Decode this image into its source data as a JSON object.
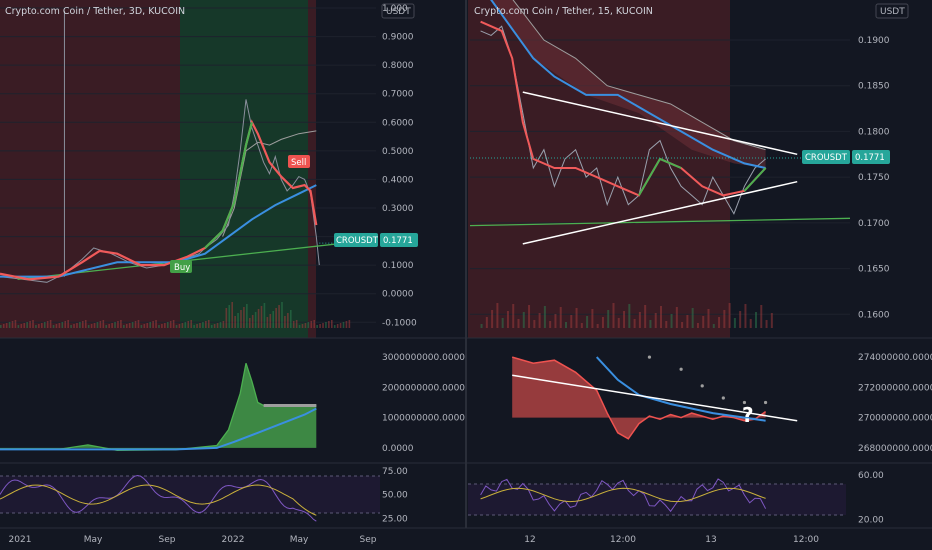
{
  "colors": {
    "background": "#131722",
    "red_zone": "#3a1c24",
    "green_zone": "#163829",
    "ema_red": "#f05a5a",
    "ma_blue": "#3a8fe0",
    "green_line": "#4caf50",
    "trend_white": "#ffffff",
    "price_badge": "#26a69a",
    "sell_badge": "#ef5350",
    "buy_badge": "#43a047",
    "rsi_line": "#7e57c2",
    "rsi_signal": "#c9b03b"
  },
  "chart_data": [
    {
      "panel": "left-main",
      "type": "line",
      "title": "Crypto.com Coin / Tether, 3D, KUCOIN",
      "currency_label": "USDT",
      "y_ticks": [
        "1.000",
        "0.9000",
        "0.8000",
        "0.7000",
        "0.6000",
        "0.5000",
        "0.4000",
        "0.3000",
        "0.2000",
        "0.1000",
        "0.0000",
        "-0.1000"
      ],
      "ylim": [
        -0.12,
        1.0
      ],
      "x_ticks": [
        "2021",
        "May",
        "Sep",
        "2022",
        "May",
        "Sep"
      ],
      "price_label": "CROUSDT",
      "price_value": "0.1771",
      "signals": [
        {
          "label": "Sell",
          "x": "2022 May",
          "y": 0.44
        },
        {
          "label": "Buy",
          "x": "2021 Oct",
          "y": 0.09
        }
      ],
      "series": [
        {
          "name": "price",
          "points": [
            [
              0,
              0.06
            ],
            [
              8,
              0.05
            ],
            [
              16,
              0.04
            ],
            [
              22,
              0.07
            ],
            [
              28,
              0.12
            ],
            [
              32,
              0.16
            ],
            [
              38,
              0.14
            ],
            [
              44,
              0.11
            ],
            [
              50,
              0.09
            ],
            [
              56,
              0.1
            ],
            [
              62,
              0.12
            ],
            [
              68,
              0.14
            ],
            [
              70,
              0.16
            ],
            [
              74,
              0.19
            ],
            [
              78,
              0.24
            ],
            [
              80,
              0.35
            ],
            [
              82,
              0.5
            ],
            [
              84,
              0.68
            ],
            [
              86,
              0.58
            ],
            [
              88,
              0.52
            ],
            [
              90,
              0.46
            ],
            [
              92,
              0.42
            ],
            [
              94,
              0.48
            ],
            [
              96,
              0.4
            ],
            [
              98,
              0.36
            ],
            [
              100,
              0.38
            ],
            [
              102,
              0.41
            ],
            [
              104,
              0.4
            ],
            [
              106,
              0.35
            ],
            [
              108,
              0.2
            ],
            [
              109,
              0.1
            ]
          ]
        },
        {
          "name": "ema",
          "points": [
            [
              0,
              0.07
            ],
            [
              10,
              0.05
            ],
            [
              20,
              0.06
            ],
            [
              28,
              0.11
            ],
            [
              34,
              0.15
            ],
            [
              40,
              0.14
            ],
            [
              48,
              0.1
            ],
            [
              56,
              0.1
            ],
            [
              64,
              0.13
            ],
            [
              70,
              0.16
            ],
            [
              76,
              0.22
            ],
            [
              80,
              0.32
            ],
            [
              84,
              0.52
            ],
            [
              86,
              0.6
            ],
            [
              88,
              0.56
            ],
            [
              92,
              0.46
            ],
            [
              96,
              0.41
            ],
            [
              100,
              0.37
            ],
            [
              104,
              0.38
            ],
            [
              106,
              0.36
            ],
            [
              108,
              0.24
            ]
          ]
        },
        {
          "name": "ma",
          "points": [
            [
              0,
              0.06
            ],
            [
              20,
              0.06
            ],
            [
              40,
              0.11
            ],
            [
              60,
              0.11
            ],
            [
              70,
              0.14
            ],
            [
              78,
              0.2
            ],
            [
              86,
              0.26
            ],
            [
              94,
              0.31
            ],
            [
              102,
              0.35
            ],
            [
              108,
              0.38
            ]
          ]
        },
        {
          "name": "ma2",
          "points": [
            [
              76,
              0.2
            ],
            [
              80,
              0.3
            ],
            [
              84,
              0.5
            ],
            [
              88,
              0.53
            ],
            [
              92,
              0.52
            ],
            [
              96,
              0.54
            ],
            [
              102,
              0.56
            ],
            [
              108,
              0.57
            ]
          ]
        },
        {
          "name": "support",
          "points": [
            [
              6,
              0.05
            ],
            [
              120,
              0.18
            ]
          ]
        }
      ]
    },
    {
      "panel": "right-main",
      "type": "line",
      "title": "Crypto.com Coin / Tether, 15, KUCOIN",
      "currency_label": "USDT",
      "y_ticks": [
        "0.1900",
        "0.1850",
        "0.1800",
        "0.1750",
        "0.1700",
        "0.1650",
        "0.1600"
      ],
      "ylim": [
        0.1585,
        0.1935
      ],
      "x_ticks": [
        "12",
        "12:00",
        "13",
        "12:00"
      ],
      "price_label": "CROUSDT",
      "price_value": "0.1771",
      "series": [
        {
          "name": "price",
          "points": [
            [
              0,
              0.191
            ],
            [
              2,
              0.1905
            ],
            [
              4,
              0.1915
            ],
            [
              6,
              0.188
            ],
            [
              8,
              0.182
            ],
            [
              10,
              0.176
            ],
            [
              12,
              0.178
            ],
            [
              14,
              0.174
            ],
            [
              16,
              0.177
            ],
            [
              18,
              0.178
            ],
            [
              20,
              0.175
            ],
            [
              22,
              0.176
            ],
            [
              24,
              0.172
            ],
            [
              26,
              0.175
            ],
            [
              28,
              0.172
            ],
            [
              30,
              0.173
            ],
            [
              32,
              0.178
            ],
            [
              34,
              0.179
            ],
            [
              36,
              0.176
            ],
            [
              38,
              0.174
            ],
            [
              40,
              0.173
            ],
            [
              42,
              0.172
            ],
            [
              44,
              0.175
            ],
            [
              46,
              0.173
            ],
            [
              48,
              0.171
            ],
            [
              50,
              0.174
            ],
            [
              52,
              0.176
            ],
            [
              54,
              0.177
            ]
          ]
        },
        {
          "name": "ema",
          "points": [
            [
              0,
              0.192
            ],
            [
              4,
              0.191
            ],
            [
              6,
              0.188
            ],
            [
              8,
              0.181
            ],
            [
              10,
              0.177
            ],
            [
              14,
              0.176
            ],
            [
              18,
              0.176
            ],
            [
              22,
              0.175
            ],
            [
              26,
              0.174
            ],
            [
              30,
              0.173
            ],
            [
              34,
              0.177
            ],
            [
              38,
              0.176
            ],
            [
              42,
              0.174
            ],
            [
              46,
              0.173
            ],
            [
              50,
              0.1735
            ],
            [
              54,
              0.176
            ]
          ]
        },
        {
          "name": "ma",
          "points": [
            [
              0,
              0.196
            ],
            [
              10,
              0.188
            ],
            [
              14,
              0.186
            ],
            [
              20,
              0.184
            ],
            [
              26,
              0.184
            ],
            [
              32,
              0.182
            ],
            [
              38,
              0.18
            ],
            [
              44,
              0.178
            ],
            [
              50,
              0.1765
            ],
            [
              54,
              0.176
            ]
          ]
        },
        {
          "name": "ma2",
          "points": [
            [
              0,
              0.199
            ],
            [
              12,
              0.19
            ],
            [
              18,
              0.188
            ],
            [
              24,
              0.185
            ],
            [
              30,
              0.184
            ],
            [
              36,
              0.183
            ],
            [
              42,
              0.181
            ],
            [
              48,
              0.179
            ],
            [
              54,
              0.178
            ]
          ]
        },
        {
          "name": "upper_trend",
          "points": [
            [
              8,
              0.1843
            ],
            [
              60,
              0.1775
            ]
          ]
        },
        {
          "name": "lower_trend",
          "points": [
            [
              8,
              0.1677
            ],
            [
              60,
              0.1745
            ]
          ]
        },
        {
          "name": "support",
          "points": [
            [
              -2,
              0.1697
            ],
            [
              70,
              0.1705
            ]
          ]
        }
      ]
    },
    {
      "panel": "left-indicator",
      "type": "area",
      "y_ticks": [
        "3000000000.0000",
        "2000000000.0000",
        "1000000000.0000",
        "0.0000"
      ],
      "ylim": [
        -400000000,
        3500000000
      ],
      "series": [
        {
          "name": "volume-delta",
          "points": [
            [
              0,
              -50000000
            ],
            [
              20,
              -50000000
            ],
            [
              30,
              100000000
            ],
            [
              40,
              -80000000
            ],
            [
              60,
              -60000000
            ],
            [
              74,
              80000000
            ],
            [
              78,
              600000000
            ],
            [
              82,
              1800000000
            ],
            [
              84,
              2800000000
            ],
            [
              86,
              2200000000
            ],
            [
              88,
              1500000000
            ],
            [
              90,
              1400000000
            ],
            [
              100,
              1400000000
            ],
            [
              108,
              1400000000
            ]
          ]
        },
        {
          "name": "ma",
          "points": [
            [
              0,
              -50000000
            ],
            [
              60,
              -50000000
            ],
            [
              74,
              0
            ],
            [
              80,
              200000000
            ],
            [
              88,
              500000000
            ],
            [
              96,
              800000000
            ],
            [
              104,
              1100000000
            ],
            [
              108,
              1300000000
            ]
          ]
        }
      ]
    },
    {
      "panel": "right-indicator",
      "type": "area",
      "y_ticks": [
        "274000000.0000",
        "272000000.0000",
        "270000000.0000",
        "268000000.0000"
      ],
      "ylim": [
        267200000,
        275000000
      ],
      "series": [
        {
          "name": "volume-delta",
          "points": [
            [
              6,
              274000000
            ],
            [
              10,
              273600000
            ],
            [
              14,
              273800000
            ],
            [
              18,
              273000000
            ],
            [
              22,
              271800000
            ],
            [
              24,
              270300000
            ],
            [
              26,
              269000000
            ],
            [
              28,
              268600000
            ],
            [
              30,
              269600000
            ],
            [
              32,
              270100000
            ],
            [
              34,
              269900000
            ],
            [
              36,
              270200000
            ],
            [
              38,
              270000000
            ],
            [
              40,
              270300000
            ],
            [
              42,
              270100000
            ],
            [
              44,
              269900000
            ],
            [
              46,
              270100000
            ],
            [
              48,
              270000000
            ],
            [
              50,
              269800000
            ],
            [
              52,
              269900000
            ],
            [
              54,
              270400000
            ]
          ]
        },
        {
          "name": "ma",
          "points": [
            [
              22,
              274000000
            ],
            [
              26,
              272500000
            ],
            [
              30,
              271500000
            ],
            [
              36,
              270900000
            ],
            [
              44,
              270300000
            ],
            [
              50,
              270000000
            ],
            [
              54,
              269800000
            ]
          ]
        },
        {
          "name": "gray",
          "points": [
            [
              32,
              274000000
            ],
            [
              38,
              273200000
            ],
            [
              42,
              272100000
            ],
            [
              46,
              271300000
            ],
            [
              50,
              271000000
            ],
            [
              54,
              271000000
            ]
          ]
        },
        {
          "name": "trend",
          "points": [
            [
              6,
              272800000
            ],
            [
              60,
              269800000
            ]
          ]
        }
      ],
      "annotation": "?"
    },
    {
      "panel": "left-rsi",
      "type": "line",
      "y_ticks": [
        "75.00",
        "50.00",
        "25.00"
      ],
      "ylim": [
        18,
        80
      ]
    },
    {
      "panel": "right-rsi",
      "type": "line",
      "y_ticks": [
        "60.00",
        "20.00"
      ],
      "ylim": [
        15,
        68
      ]
    }
  ]
}
